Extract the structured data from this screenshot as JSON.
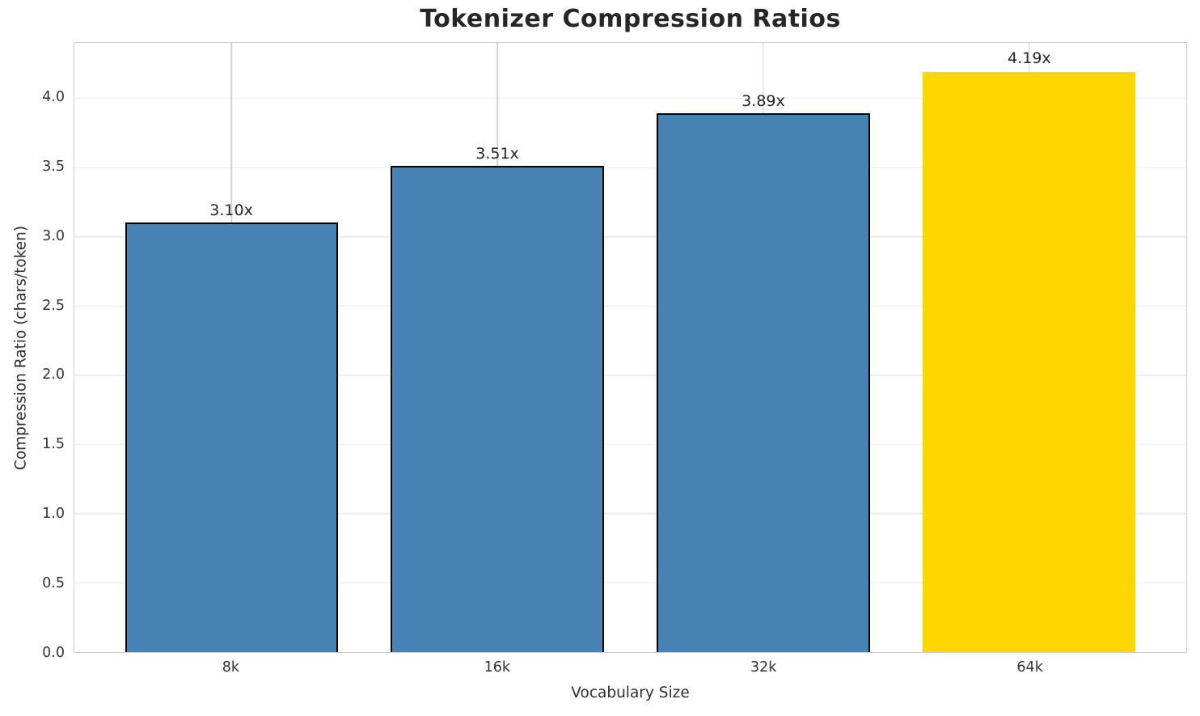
{
  "chart_data": {
    "type": "bar",
    "title": "Tokenizer Compression Ratios",
    "xlabel": "Vocabulary Size",
    "ylabel": "Compression Ratio (chars/token)",
    "categories": [
      "8k",
      "16k",
      "32k",
      "64k"
    ],
    "values": [
      3.1,
      3.51,
      3.89,
      4.19
    ],
    "value_labels": [
      "3.10x",
      "3.51x",
      "3.89x",
      "4.19x"
    ],
    "bar_colors": [
      "#4682b4",
      "#4682b4",
      "#4682b4",
      "#ffd700"
    ],
    "bar_edges": [
      true,
      true,
      true,
      false
    ],
    "highlight_category": "64k",
    "ylim": [
      0,
      4.4
    ],
    "yticks": [
      0.0,
      0.5,
      1.0,
      1.5,
      2.0,
      2.5,
      3.0,
      3.5,
      4.0
    ],
    "ytick_labels": [
      "0.0",
      "0.5",
      "1.0",
      "1.5",
      "2.0",
      "2.5",
      "3.0",
      "3.5",
      "4.0"
    ],
    "bar_width_fraction": 0.8,
    "x_positions": [
      0,
      1,
      2,
      3
    ],
    "xlim": [
      -0.59,
      3.59
    ],
    "grid": true,
    "legend": "none",
    "colors": {
      "grid_horizontal": "#ececec",
      "grid_vertical": "#d2d2d2",
      "spine": "#cfcfcf",
      "text": "#262626",
      "background": "#ffffff"
    }
  }
}
